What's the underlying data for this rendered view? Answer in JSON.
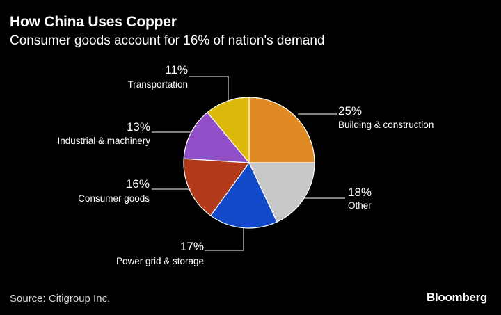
{
  "header": {
    "title": "How China Uses Copper",
    "subtitle": "Consumer goods account for 16% of nation's demand"
  },
  "footer": {
    "source": "Source: Citigroup Inc.",
    "brand": "Bloomberg"
  },
  "chart_data": {
    "type": "pie",
    "start_angle_deg": 0,
    "direction": "clockwise",
    "slices": [
      {
        "label": "Building & construction",
        "value": 25,
        "value_label": "25%",
        "color": "#e08a24"
      },
      {
        "label": "Other",
        "value": 18,
        "value_label": "18%",
        "color": "#c8c8c8"
      },
      {
        "label": "Power grid & storage",
        "value": 17,
        "value_label": "17%",
        "color": "#1249c8"
      },
      {
        "label": "Consumer goods",
        "value": 16,
        "value_label": "16%",
        "color": "#b23a1a"
      },
      {
        "label": "Industrial & machinery",
        "value": 13,
        "value_label": "13%",
        "color": "#9150c8"
      },
      {
        "label": "Transportation",
        "value": 11,
        "value_label": "11%",
        "color": "#dcb80a"
      }
    ]
  }
}
